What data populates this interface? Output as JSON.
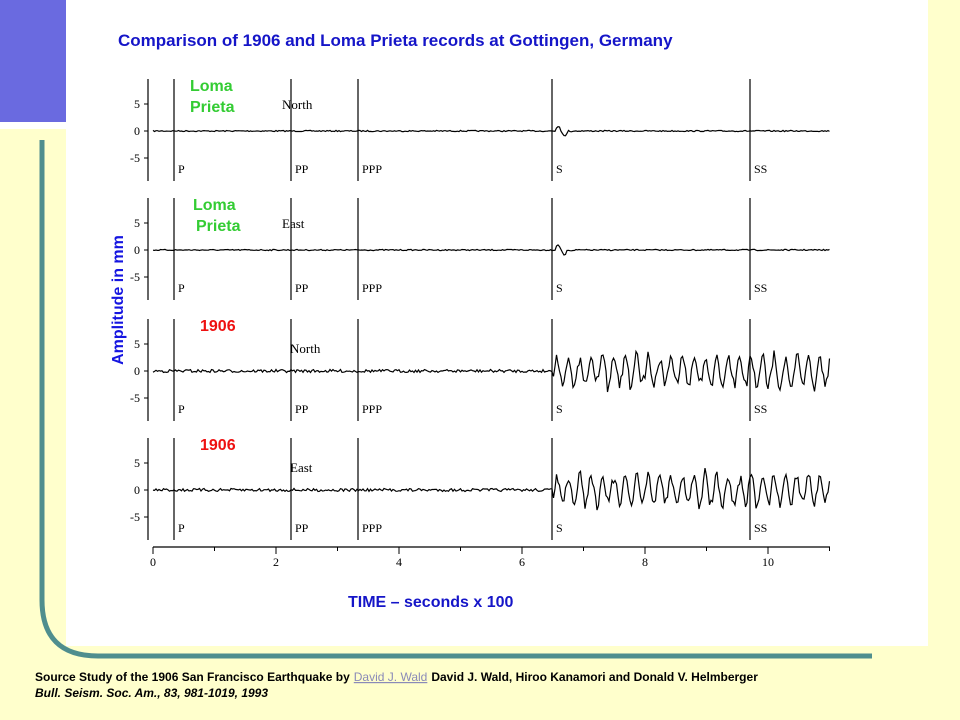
{
  "figure": {
    "title": "Comparison of 1906 and Loma Prieta records at Gottingen, Germany",
    "y_axis_label": "Amplitude in mm",
    "x_axis_label": "TIME – seconds x 100",
    "x_ticks": [
      "0",
      "2",
      "4",
      "6",
      "8",
      "10"
    ],
    "panels": [
      {
        "labels": [
          "Loma",
          "Prieta"
        ],
        "component": "North",
        "y_ticks": [
          "5",
          "0",
          "-5"
        ],
        "phases": [
          "P",
          "PP",
          "PPP",
          "S",
          "SS"
        ]
      },
      {
        "labels": [
          "Loma",
          "Prieta"
        ],
        "component": "East",
        "y_ticks": [
          "5",
          "0",
          "-5"
        ],
        "phases": [
          "P",
          "PP",
          "PPP",
          "S",
          "SS"
        ]
      },
      {
        "labels": [
          "1906"
        ],
        "component": "North",
        "y_ticks": [
          "5",
          "0",
          "-5"
        ],
        "phases": [
          "P",
          "PP",
          "PPP",
          "S",
          "SS"
        ]
      },
      {
        "labels": [
          "1906"
        ],
        "component": "East",
        "y_ticks": [
          "5",
          "0",
          "-5"
        ],
        "phases": [
          "P",
          "PP",
          "PPP",
          "S",
          "SS"
        ]
      }
    ]
  },
  "footer": {
    "citation_prefix": "Source Study of the 1906 San Francisco Earthquake  by",
    "link": "David J. Wald",
    "authors": "David J. Wald, Hiroo Kanamori and Donald V. Helmberger",
    "journal": "Bull. Seism. Soc. Am., 83, 981-1019, 1993"
  }
}
